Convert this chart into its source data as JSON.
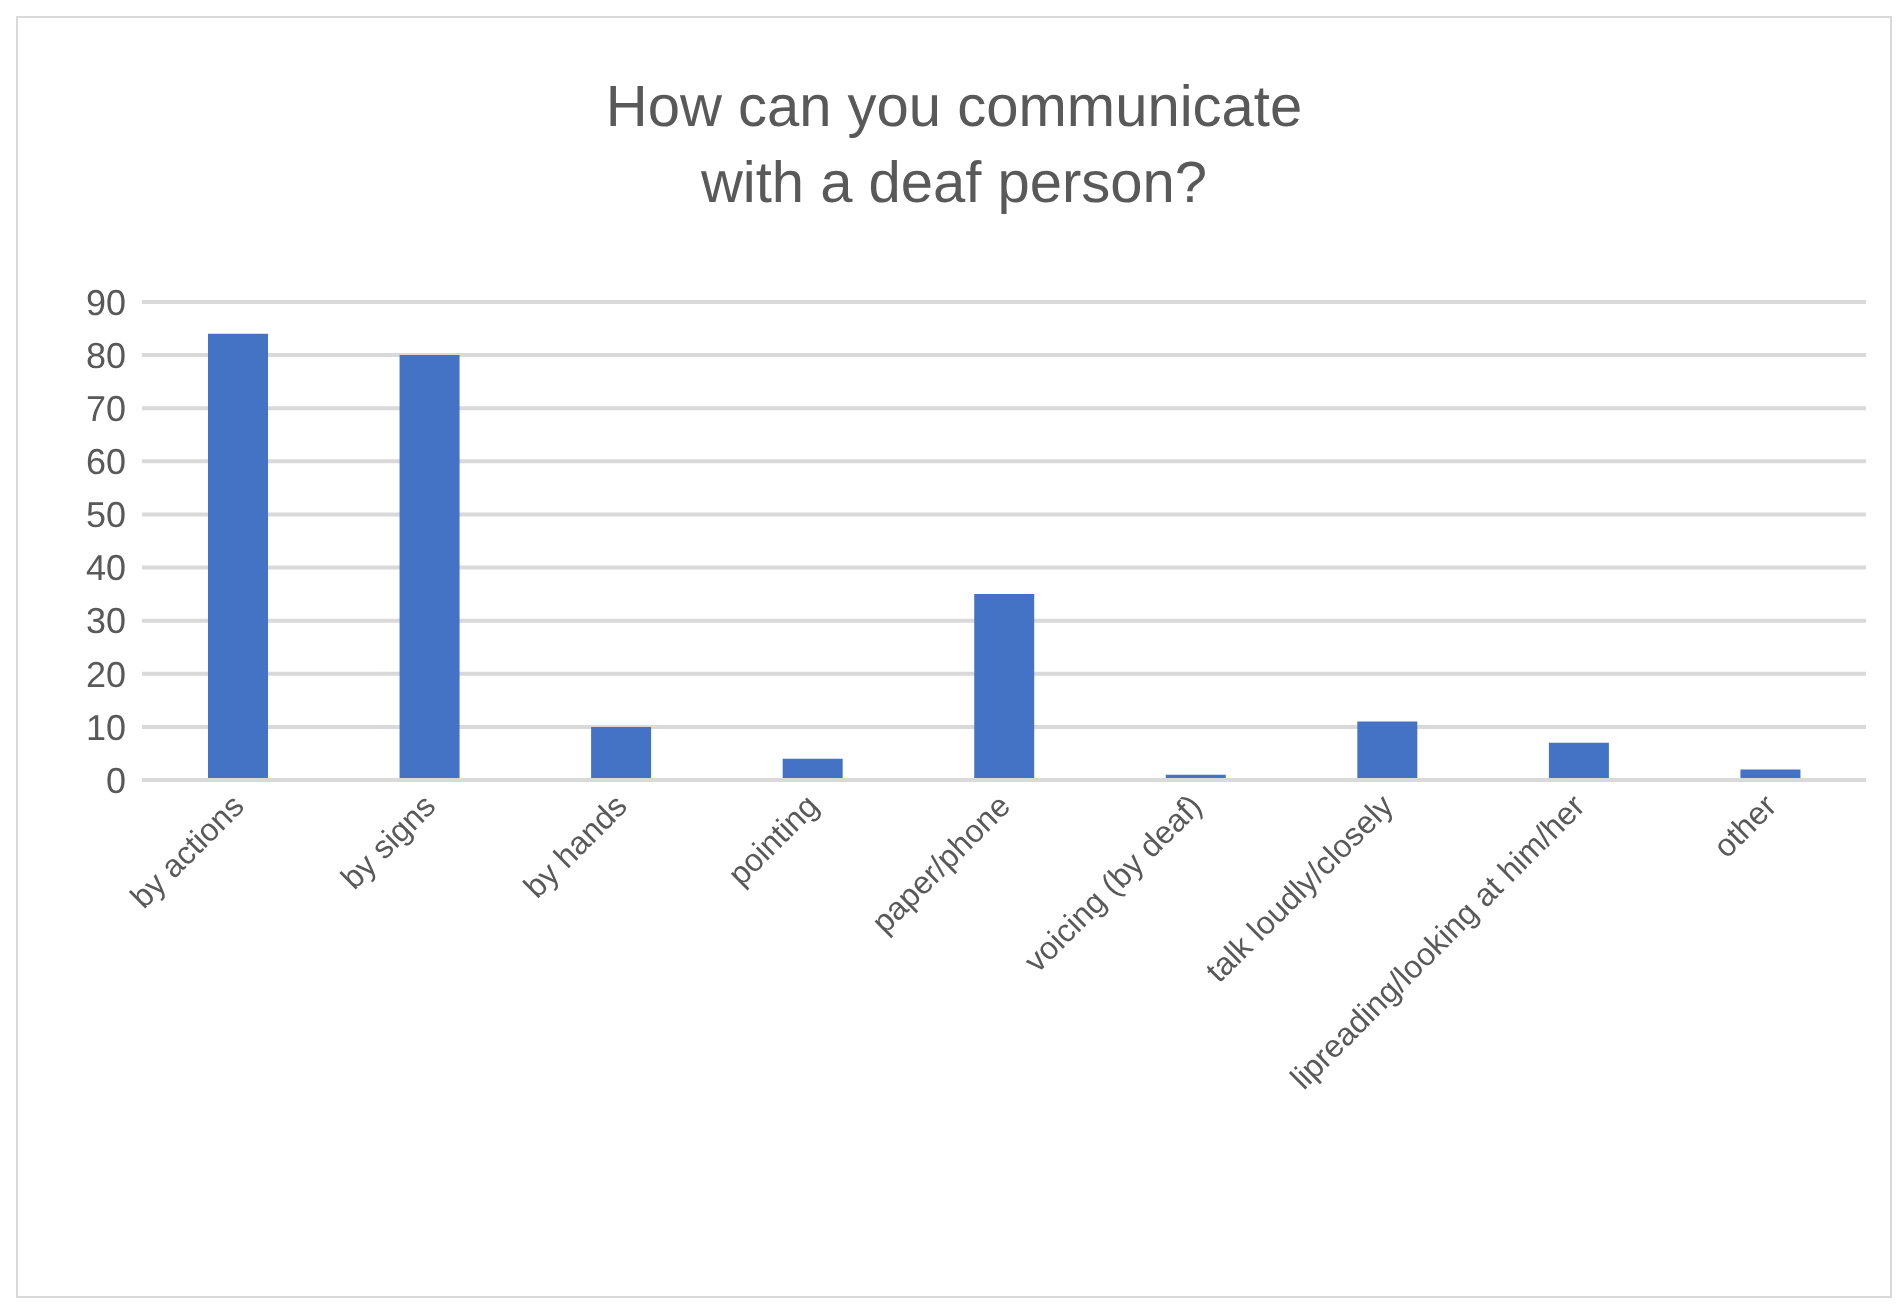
{
  "chart_data": {
    "type": "bar",
    "title": "How can you communicate\nwith a deaf person?",
    "categories": [
      "by actions",
      "by signs",
      "by hands",
      "pointing",
      "paper/phone",
      "voicing (by deaf)",
      "talk loudly/closely",
      "lipreading/looking at him/her",
      "other"
    ],
    "values": [
      84,
      80,
      10,
      4,
      35,
      1,
      11,
      7,
      2
    ],
    "color": "#4472c4",
    "ylim": [
      0,
      90
    ],
    "yticks": [
      0,
      10,
      20,
      30,
      40,
      50,
      60,
      70,
      80,
      90
    ],
    "grid": "y"
  }
}
